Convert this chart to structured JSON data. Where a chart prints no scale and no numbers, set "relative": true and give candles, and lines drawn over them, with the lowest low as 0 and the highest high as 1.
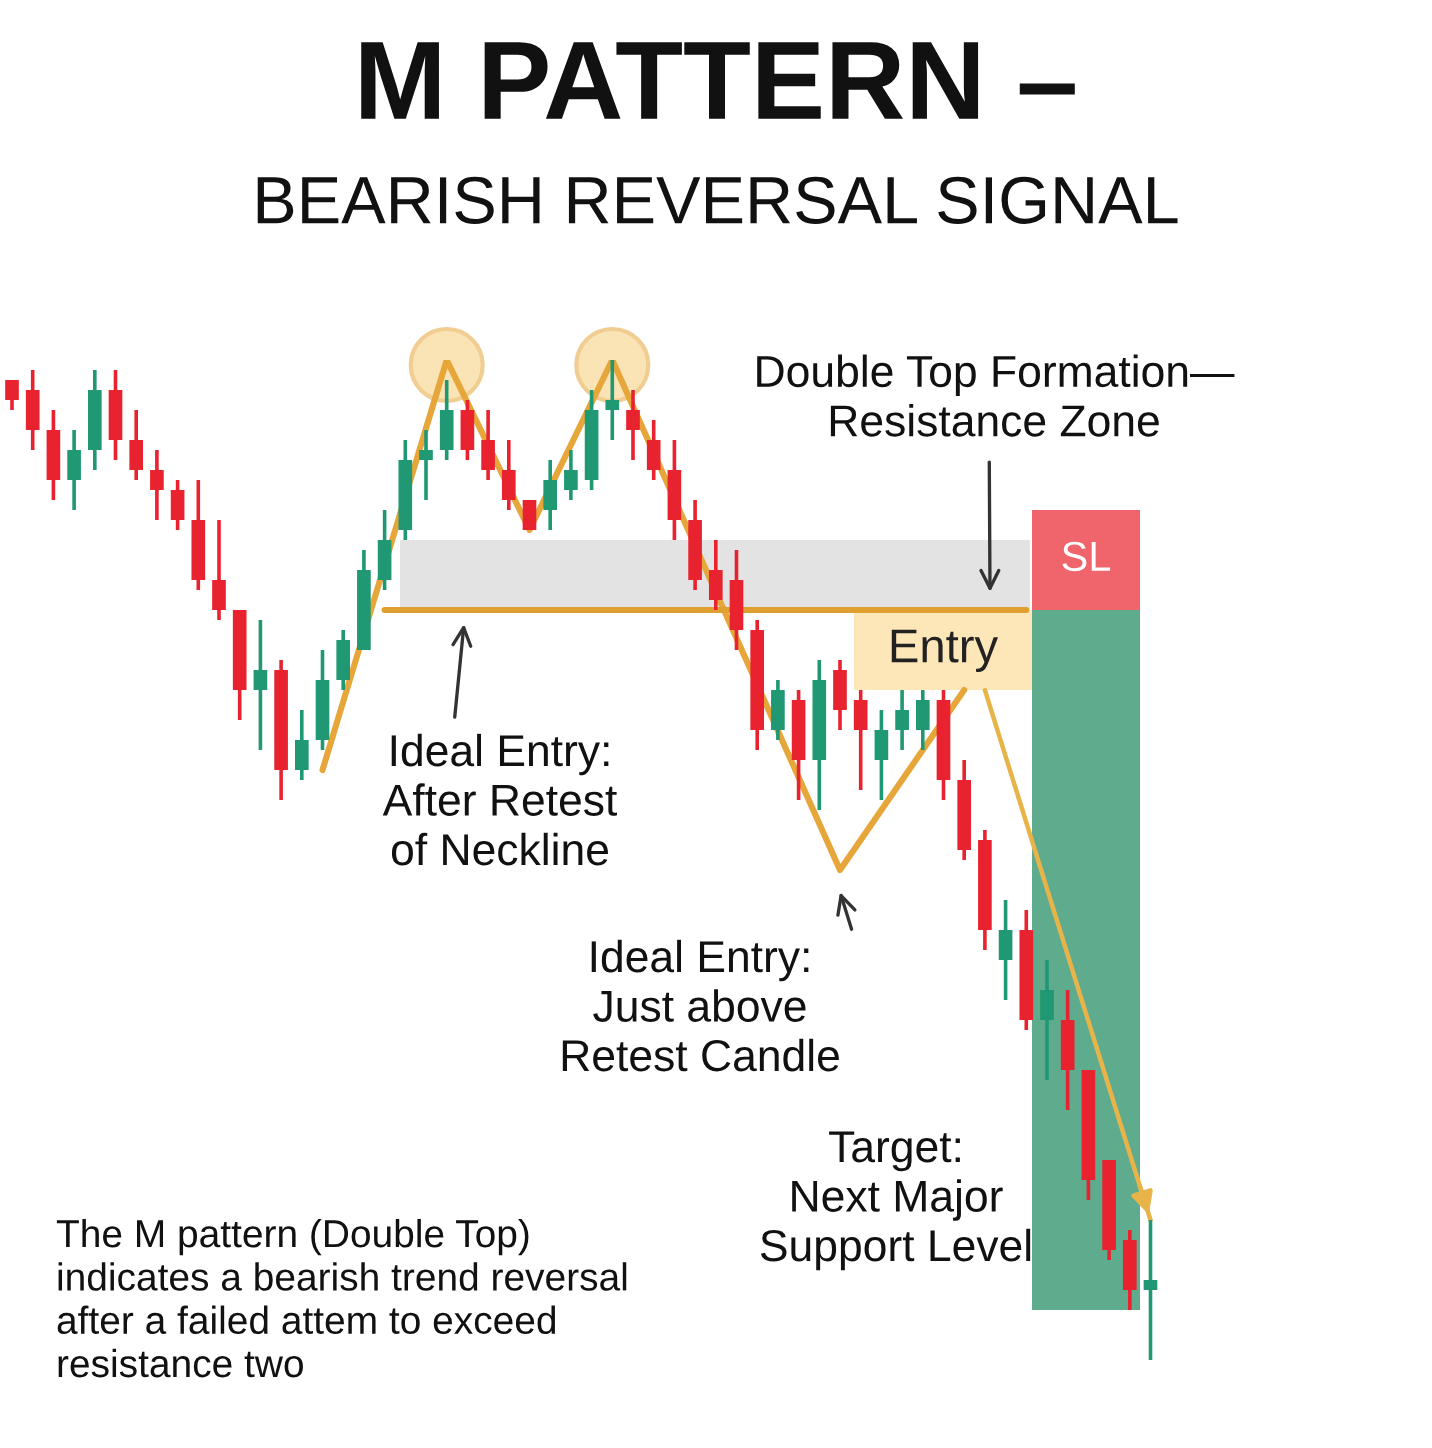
{
  "chart_data": {
    "type": "candlestick",
    "title": "M PATTERN –",
    "subtitle": "BEARISH REVERSAL SIGNAL",
    "relative": true,
    "categories": [
      null,
      null,
      null,
      null,
      null,
      null,
      null,
      null,
      null,
      null,
      null,
      null,
      null,
      null,
      null,
      null,
      null,
      null,
      null,
      null,
      null,
      null,
      null,
      null,
      null,
      null,
      null,
      null,
      null,
      null,
      null,
      null,
      null,
      null,
      null,
      null,
      null,
      null,
      null,
      null,
      null,
      null,
      null,
      null,
      null,
      null,
      null,
      null,
      null,
      null,
      null,
      null,
      null,
      null,
      null,
      null
    ],
    "ohlc": [
      [
        0.98,
        0.98,
        0.95,
        0.96
      ],
      [
        0.97,
        0.99,
        0.91,
        0.93
      ],
      [
        0.93,
        0.95,
        0.86,
        0.88
      ],
      [
        0.88,
        0.93,
        0.85,
        0.91
      ],
      [
        0.91,
        0.99,
        0.89,
        0.97
      ],
      [
        0.97,
        0.99,
        0.9,
        0.92
      ],
      [
        0.92,
        0.95,
        0.88,
        0.89
      ],
      [
        0.89,
        0.91,
        0.84,
        0.87
      ],
      [
        0.87,
        0.88,
        0.83,
        0.84
      ],
      [
        0.84,
        0.88,
        0.77,
        0.78
      ],
      [
        0.78,
        0.84,
        0.74,
        0.75
      ],
      [
        0.75,
        0.75,
        0.64,
        0.67
      ],
      [
        0.67,
        0.74,
        0.61,
        0.69
      ],
      [
        0.69,
        0.7,
        0.56,
        0.59
      ],
      [
        0.59,
        0.65,
        0.58,
        0.62
      ],
      [
        0.62,
        0.71,
        0.61,
        0.68
      ],
      [
        0.68,
        0.73,
        0.67,
        0.72
      ],
      [
        0.71,
        0.81,
        0.71,
        0.79
      ],
      [
        0.78,
        0.85,
        0.77,
        0.82
      ],
      [
        0.83,
        0.92,
        0.82,
        0.9
      ],
      [
        0.9,
        0.93,
        0.86,
        0.91
      ],
      [
        0.91,
        0.98,
        0.9,
        0.95
      ],
      [
        0.95,
        0.96,
        0.9,
        0.91
      ],
      [
        0.92,
        0.95,
        0.88,
        0.89
      ],
      [
        0.89,
        0.92,
        0.85,
        0.86
      ],
      [
        0.86,
        0.86,
        0.83,
        0.83
      ],
      [
        0.85,
        0.9,
        0.83,
        0.88
      ],
      [
        0.87,
        0.91,
        0.86,
        0.89
      ],
      [
        0.88,
        0.97,
        0.87,
        0.95
      ],
      [
        0.95,
        1.0,
        0.92,
        0.96
      ],
      [
        0.95,
        0.97,
        0.9,
        0.93
      ],
      [
        0.92,
        0.94,
        0.88,
        0.89
      ],
      [
        0.89,
        0.92,
        0.82,
        0.84
      ],
      [
        0.84,
        0.86,
        0.77,
        0.78
      ],
      [
        0.79,
        0.82,
        0.75,
        0.76
      ],
      [
        0.78,
        0.81,
        0.71,
        0.73
      ],
      [
        0.73,
        0.74,
        0.61,
        0.63
      ],
      [
        0.63,
        0.68,
        0.62,
        0.67
      ],
      [
        0.66,
        0.67,
        0.56,
        0.6
      ],
      [
        0.6,
        0.7,
        0.55,
        0.68
      ],
      [
        0.69,
        0.7,
        0.63,
        0.65
      ],
      [
        0.66,
        0.67,
        0.57,
        0.63
      ],
      [
        0.6,
        0.65,
        0.56,
        0.63
      ],
      [
        0.63,
        0.67,
        0.61,
        0.65
      ],
      [
        0.63,
        0.67,
        0.61,
        0.66
      ],
      [
        0.66,
        0.67,
        0.56,
        0.58
      ],
      [
        0.58,
        0.6,
        0.5,
        0.51
      ],
      [
        0.52,
        0.53,
        0.41,
        0.43
      ],
      [
        0.4,
        0.46,
        0.36,
        0.43
      ],
      [
        0.43,
        0.45,
        0.33,
        0.34
      ],
      [
        0.34,
        0.4,
        0.28,
        0.37
      ],
      [
        0.34,
        0.37,
        0.25,
        0.29
      ],
      [
        0.29,
        0.29,
        0.16,
        0.18
      ],
      [
        0.2,
        0.2,
        0.1,
        0.11
      ],
      [
        0.12,
        0.13,
        0.05,
        0.07
      ],
      [
        0.07,
        0.14,
        0.0,
        0.08
      ]
    ],
    "colors": [
      "#e8232f",
      "#e8232f",
      "#e8232f",
      "#1f9873",
      "#1f9873",
      "#e8232f",
      "#e8232f",
      "#e8232f",
      "#e8232f",
      "#e8232f",
      "#e8232f",
      "#e8232f",
      "#1f9873",
      "#e8232f",
      "#1f9873",
      "#1f9873",
      "#1f9873",
      "#1f9873",
      "#1f9873",
      "#1f9873",
      "#1f9873",
      "#1f9873",
      "#e8232f",
      "#e8232f",
      "#e8232f",
      "#e8232f",
      "#1f9873",
      "#1f9873",
      "#1f9873",
      "#1f9873",
      "#e8232f",
      "#e8232f",
      "#e8232f",
      "#e8232f",
      "#e8232f",
      "#e8232f",
      "#e8232f",
      "#1f9873",
      "#e8232f",
      "#1f9873",
      "#e8232f",
      "#e8232f",
      "#1f9873",
      "#1f9873",
      "#1f9873",
      "#e8232f",
      "#e8232f",
      "#e8232f",
      "#1f9873",
      "#e8232f",
      "#1f9873",
      "#e8232f",
      "#e8232f",
      "#e8232f",
      "#e8232f",
      "#1f9873"
    ],
    "series": [
      {
        "type": "line",
        "color": "#e6a63a",
        "values": [
          null,
          null,
          null,
          null,
          null,
          null,
          null,
          null,
          null,
          null,
          null,
          null,
          null,
          null,
          null,
          0.59,
          null,
          null,
          null,
          null,
          null,
          1.0,
          null,
          null,
          null,
          0.83,
          null,
          null,
          null,
          1.0,
          null,
          null,
          null,
          null,
          null,
          null,
          null,
          null,
          null,
          null,
          0.49,
          null,
          null,
          null,
          null,
          null,
          0.67,
          null,
          null,
          null,
          null,
          null,
          null,
          null,
          null,
          null
        ]
      },
      {
        "type": "line",
        "color": "#e0a030",
        "values": [
          null,
          null,
          null,
          null,
          null,
          null,
          null,
          null,
          null,
          null,
          null,
          null,
          null,
          null,
          null,
          null,
          null,
          null,
          0.75,
          0.75,
          0.75,
          0.75,
          0.75,
          0.75,
          0.75,
          0.75,
          0.75,
          0.75,
          0.75,
          0.75,
          0.75,
          0.75,
          0.75,
          0.75,
          0.75,
          0.75,
          0.75,
          0.75,
          0.75,
          0.75,
          0.75,
          0.75,
          0.75,
          0.75,
          0.75,
          0.75,
          0.75,
          0.75,
          0.75,
          0.75,
          null,
          null,
          null,
          null,
          null,
          null
        ]
      },
      {
        "type": "line",
        "color": "#e8b44a",
        "values": [
          null,
          null,
          null,
          null,
          null,
          null,
          null,
          null,
          null,
          null,
          null,
          null,
          null,
          null,
          null,
          null,
          null,
          null,
          null,
          null,
          null,
          null,
          null,
          null,
          null,
          null,
          null,
          null,
          null,
          null,
          null,
          null,
          null,
          null,
          null,
          null,
          null,
          null,
          null,
          null,
          null,
          null,
          null,
          null,
          null,
          null,
          null,
          0.67,
          null,
          null,
          null,
          null,
          null,
          null,
          null,
          0.14
        ]
      }
    ],
    "bands": [
      {
        "axis": "y",
        "from": 0.75,
        "to": 0.82,
        "color": "#e3e3e3"
      },
      {
        "axis": "y",
        "from": 0.67,
        "to": 0.75,
        "color": "#fde7b8",
        "label": "Entry"
      },
      {
        "axis": "y",
        "from": 0.75,
        "to": 0.85,
        "color": "#f0646c",
        "label": "SL"
      },
      {
        "axis": "y",
        "from": 0.05,
        "to": 0.75,
        "color": "#5eab8d"
      }
    ],
    "annotations": [
      "Double Top Formation—\nResistance Zone",
      "Ideal Entry:\nAfter Retest\nof Neckline",
      "Ideal Entry:\nJust above\nRetest Candle",
      "Target:\nNext Major\nSupport Level",
      "The M pattern (Double Top)\nindicates a bearish trend reversal\nafter a failed attem to exceed\nresistance two"
    ]
  }
}
